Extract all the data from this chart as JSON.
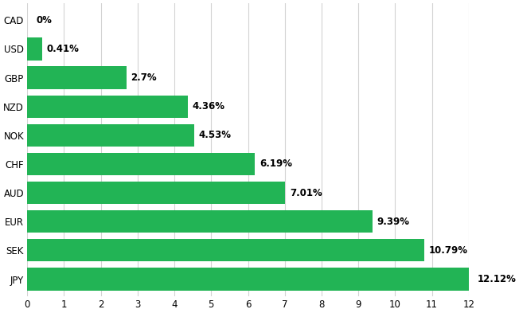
{
  "categories": [
    "CAD",
    "USD",
    "GBP",
    "NZD",
    "NOK",
    "CHF",
    "AUD",
    "EUR",
    "SEK",
    "JPY"
  ],
  "values": [
    0,
    0.41,
    2.7,
    4.36,
    4.53,
    6.19,
    7.01,
    9.39,
    10.79,
    12.12
  ],
  "labels": [
    "0%",
    "0.41%",
    "2.7%",
    "4.36%",
    "4.53%",
    "6.19%",
    "7.01%",
    "9.39%",
    "10.79%",
    "12.12%"
  ],
  "bar_color": "#22b455",
  "background_color": "#ffffff",
  "grid_color": "#d3d3d3",
  "text_color": "#000000",
  "xlim": [
    0,
    12
  ],
  "xticks": [
    0,
    1,
    2,
    3,
    4,
    5,
    6,
    7,
    8,
    9,
    10,
    11,
    12
  ],
  "bar_height": 0.78,
  "label_fontsize": 8.5,
  "tick_fontsize": 8.5,
  "ytick_fontsize": 8.5
}
